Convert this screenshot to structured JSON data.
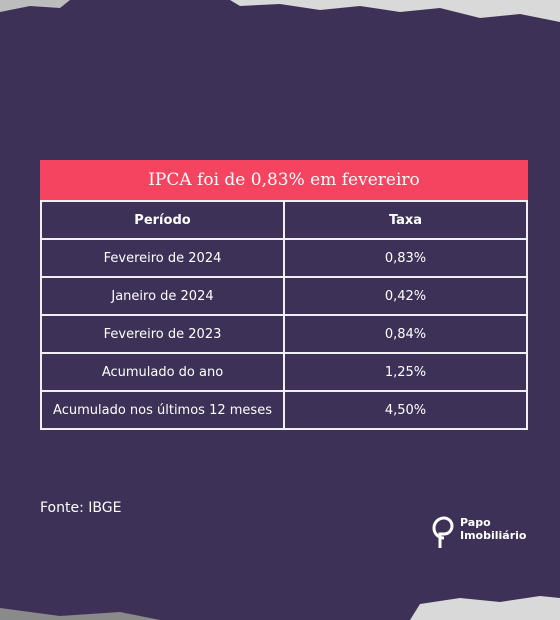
{
  "table": {
    "title": "IPCA foi de 0,83% em fevereiro",
    "columns": [
      "Período",
      "Taxa"
    ],
    "rows": [
      [
        "Fevereiro de 2024",
        "0,83%"
      ],
      [
        "Janeiro de 2024",
        "0,42%"
      ],
      [
        "Fevereiro de 2023",
        "0,84%"
      ],
      [
        "Acumulado do ano",
        "1,25%"
      ],
      [
        "Acumulado nos últimos 12 meses",
        "4,50%"
      ]
    ]
  },
  "source": "Fonte: IBGE",
  "logo": [
    "Papo",
    "Imobiliário"
  ]
}
